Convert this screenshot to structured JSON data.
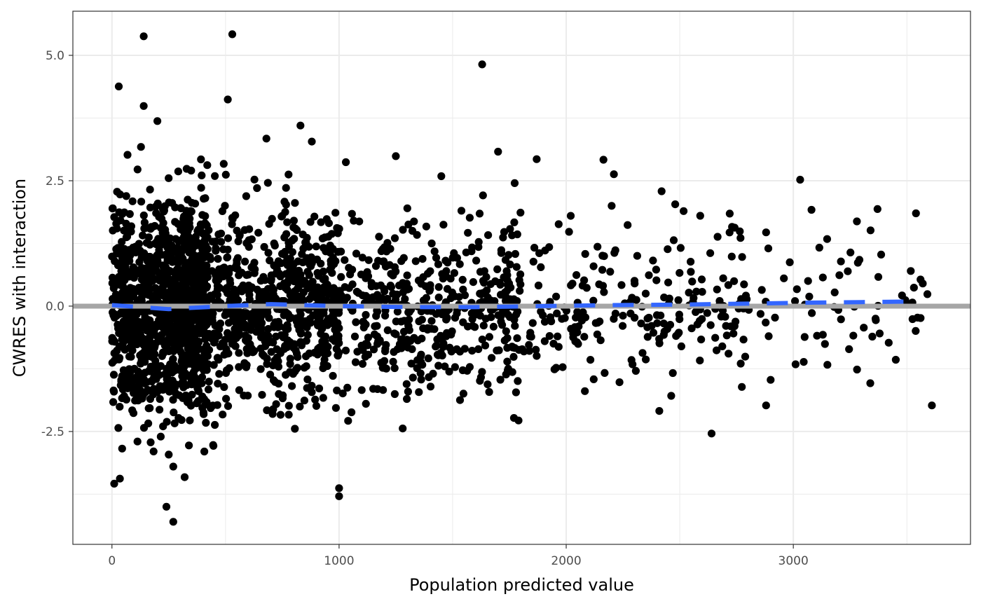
{
  "chart_data": {
    "type": "scatter",
    "title": "",
    "xlabel": "Population predicted value",
    "ylabel": "CWRES with interaction",
    "xlim": [
      -172,
      3780
    ],
    "ylim": [
      -4.75,
      5.88
    ],
    "x_ticks": [
      0,
      1000,
      2000,
      3000
    ],
    "x_tick_labels": [
      "0",
      "1000",
      "2000",
      "3000"
    ],
    "x_minor_ticks": [
      500,
      1500,
      2500,
      3500
    ],
    "y_ticks": [
      -2.5,
      0.0,
      2.5,
      5.0
    ],
    "y_tick_labels": [
      "-2.5",
      "0.0",
      "2.5",
      "5.0"
    ],
    "y_minor_ticks": [
      -3.75,
      -1.25,
      1.25,
      3.75
    ],
    "grid": true,
    "legend": "none",
    "colors": {
      "points": "#000000",
      "reference_line": "#a6a6a6",
      "smooth_line": "#3366ff",
      "grid": "#ebebeb",
      "panel_border": "#333333"
    },
    "reference_line": {
      "y": 0
    },
    "smooth_line": {
      "style": "dashed",
      "x": [
        0,
        250,
        500,
        700,
        1000,
        1300,
        1600,
        1900,
        2200,
        2500,
        2800,
        3100,
        3300,
        3500
      ],
      "y": [
        0.02,
        -0.06,
        0.0,
        0.04,
        0.0,
        -0.02,
        -0.02,
        0.0,
        0.02,
        0.03,
        0.05,
        0.07,
        0.08,
        0.09
      ]
    },
    "notable_points": [
      {
        "x": 140,
        "y": 5.38
      },
      {
        "x": 530,
        "y": 5.42
      },
      {
        "x": 30,
        "y": 4.38
      },
      {
        "x": 1630,
        "y": 4.82
      },
      {
        "x": 510,
        "y": 4.12
      },
      {
        "x": 140,
        "y": 3.99
      },
      {
        "x": 200,
        "y": 3.69
      },
      {
        "x": 830,
        "y": 3.6
      },
      {
        "x": 680,
        "y": 3.34
      },
      {
        "x": 880,
        "y": 3.28
      },
      {
        "x": 1700,
        "y": 3.08
      },
      {
        "x": 1870,
        "y": 2.93
      },
      {
        "x": 1250,
        "y": 2.99
      },
      {
        "x": 1030,
        "y": 2.87
      },
      {
        "x": 2210,
        "y": 2.63
      },
      {
        "x": 1450,
        "y": 2.59
      },
      {
        "x": 3030,
        "y": 2.52
      },
      {
        "x": 2420,
        "y": 2.29
      },
      {
        "x": 3080,
        "y": 1.92
      },
      {
        "x": 3540,
        "y": 1.85
      },
      {
        "x": 3280,
        "y": 1.69
      },
      {
        "x": 3340,
        "y": 1.51
      },
      {
        "x": 2880,
        "y": 1.47
      },
      {
        "x": 2890,
        "y": 1.15
      },
      {
        "x": 2730,
        "y": 1.58
      },
      {
        "x": 3560,
        "y": 0.53
      },
      {
        "x": 3570,
        "y": 0.45
      },
      {
        "x": 3130,
        "y": 0.57
      },
      {
        "x": 3070,
        "y": 0.19
      },
      {
        "x": 3310,
        "y": -0.43
      },
      {
        "x": 3130,
        "y": -0.57
      },
      {
        "x": 3420,
        "y": -0.73
      },
      {
        "x": 3150,
        "y": -1.17
      },
      {
        "x": 3010,
        "y": -1.16
      },
      {
        "x": 2900,
        "y": -1.47
      },
      {
        "x": 2880,
        "y": -1.98
      },
      {
        "x": 3610,
        "y": -1.98
      },
      {
        "x": 2410,
        "y": -2.09
      },
      {
        "x": 2640,
        "y": -2.54
      },
      {
        "x": 1280,
        "y": -2.44
      },
      {
        "x": 1790,
        "y": -2.28
      },
      {
        "x": 1770,
        "y": -2.23
      },
      {
        "x": 1000,
        "y": -3.63
      },
      {
        "x": 1000,
        "y": -3.79
      },
      {
        "x": 10,
        "y": -3.54
      },
      {
        "x": 35,
        "y": -3.44
      },
      {
        "x": 45,
        "y": -2.84
      },
      {
        "x": 240,
        "y": -4.0
      },
      {
        "x": 270,
        "y": -4.3
      },
      {
        "x": 270,
        "y": -3.2
      },
      {
        "x": 320,
        "y": -3.41
      },
      {
        "x": 250,
        "y": -2.96
      },
      {
        "x": 1620,
        "y": -1.49
      },
      {
        "x": 2480,
        "y": 2.03
      },
      {
        "x": 2200,
        "y": 2.0
      },
      {
        "x": 2020,
        "y": 1.8
      }
    ],
    "bulk_point_count": 2600
  }
}
